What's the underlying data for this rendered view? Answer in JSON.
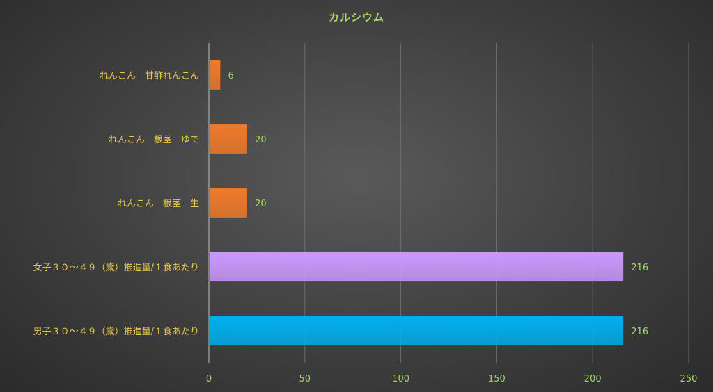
{
  "chart_data": {
    "type": "bar",
    "orientation": "horizontal",
    "title": "カルシウム",
    "xlabel": "",
    "ylabel": "",
    "xlim": [
      0,
      250
    ],
    "x_ticks": [
      0,
      50,
      100,
      150,
      200,
      250
    ],
    "grid": true,
    "categories": [
      "れんこん　甘酢れんこん",
      "れんこん　根茎　ゆで",
      "れんこん　根茎　生",
      "女子３０～４９（歳）推進量/１食あたり",
      "男子３０～４９（歳）推進量/１食あたり"
    ],
    "values": [
      6,
      20,
      20,
      216,
      216
    ],
    "bar_colors": [
      "#f07a2a",
      "#f07a2a",
      "#f07a2a",
      "#cc99ff",
      "#00b0f0"
    ],
    "colors": {
      "title": "#a6d46a",
      "category_label": "#e8c84a",
      "tick_label": "#a6d46a",
      "grid": "#6e6e6e"
    }
  }
}
